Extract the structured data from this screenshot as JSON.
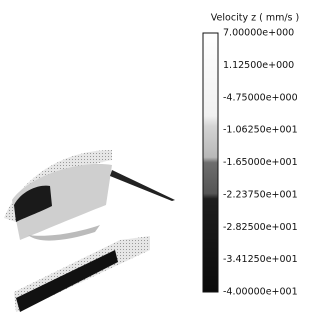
{
  "legend": {
    "title": "Velocity z ( mm/s )",
    "labels": [
      "7.00000e+000",
      "1.12500e+000",
      "-4.75000e+000",
      "-1.06250e+001",
      "-1.65000e+001",
      "-2.23750e+001",
      "-2.82500e+001",
      "-3.41250e+001",
      "-4.00000e+001"
    ]
  }
}
